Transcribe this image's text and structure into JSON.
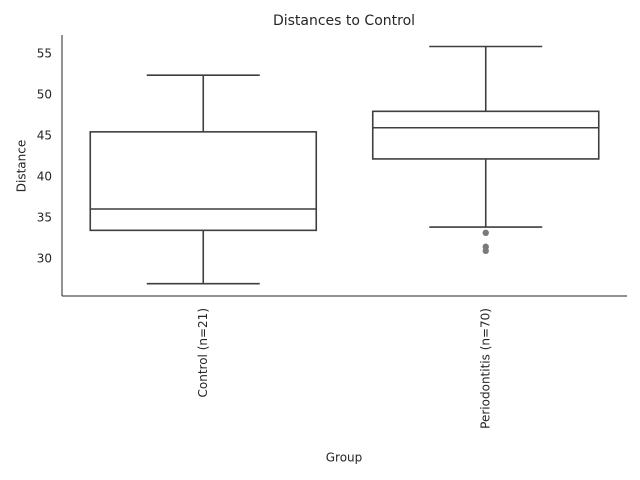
{
  "chart_data": {
    "type": "box",
    "title": "Distances to Control",
    "x_label": "Group",
    "y_label": "Distance",
    "categories": [
      "Control (n=21)",
      "Periodontitis (n=70)"
    ],
    "boxes": [
      {
        "low": 27.0,
        "q1": 33.5,
        "median": 36.1,
        "q3": 45.5,
        "high": 52.4,
        "outliers": []
      },
      {
        "low": 33.9,
        "q1": 42.2,
        "median": 46.0,
        "q3": 48.0,
        "high": 55.9,
        "outliers": [
          33.2,
          31.5,
          31.0
        ]
      }
    ],
    "color": "#3f3f3f",
    "outlier_color": "#7a7a7a",
    "ylim": [
      25.5,
      57.3
    ],
    "yticks": [
      30,
      35,
      40,
      45,
      50,
      55
    ]
  }
}
